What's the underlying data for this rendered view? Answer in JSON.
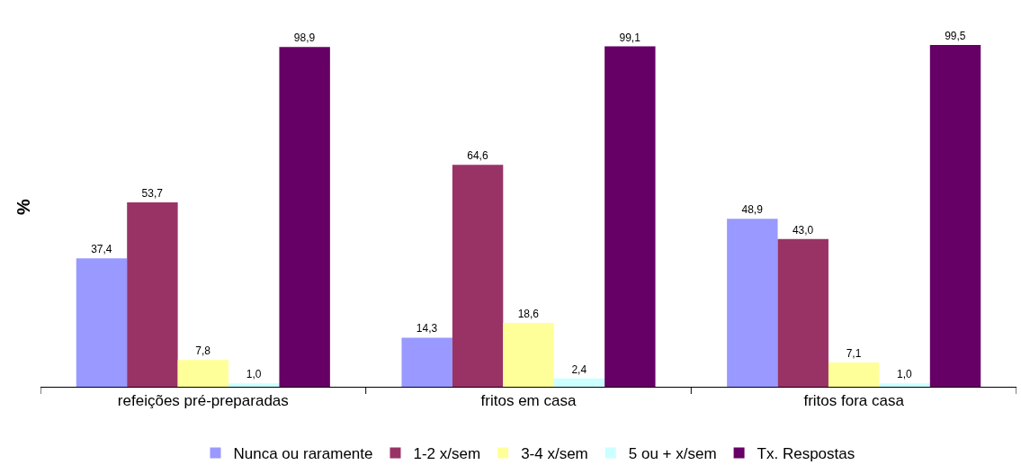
{
  "chart_data": {
    "type": "bar",
    "ylabel": "%",
    "categories": [
      "refeições pré-preparadas",
      "fritos em casa",
      "fritos fora casa"
    ],
    "series": [
      {
        "name": "Nunca ou raramente",
        "color": "#9999ff",
        "values": [
          37.4,
          14.3,
          48.9
        ],
        "value_labels": [
          "37,4",
          "14,3",
          "48,9"
        ]
      },
      {
        "name": "1-2 x/sem",
        "color": "#993366",
        "values": [
          53.7,
          64.6,
          43.0
        ],
        "value_labels": [
          "53,7",
          "64,6",
          "43,0"
        ]
      },
      {
        "name": "3-4 x/sem",
        "color": "#ffff99",
        "values": [
          7.8,
          18.6,
          7.1
        ],
        "value_labels": [
          "7,8",
          "18,6",
          "7,1"
        ]
      },
      {
        "name": "5 ou + x/sem",
        "color": "#ccffff",
        "values": [
          1.0,
          2.4,
          1.0
        ],
        "value_labels": [
          "1,0",
          "2,4",
          "1,0"
        ]
      },
      {
        "name": "Tx. Respostas",
        "color": "#660066",
        "values": [
          98.9,
          99.1,
          99.5
        ],
        "value_labels": [
          "98,9",
          "99,1",
          "99,5"
        ]
      }
    ],
    "legend": "bottom"
  }
}
